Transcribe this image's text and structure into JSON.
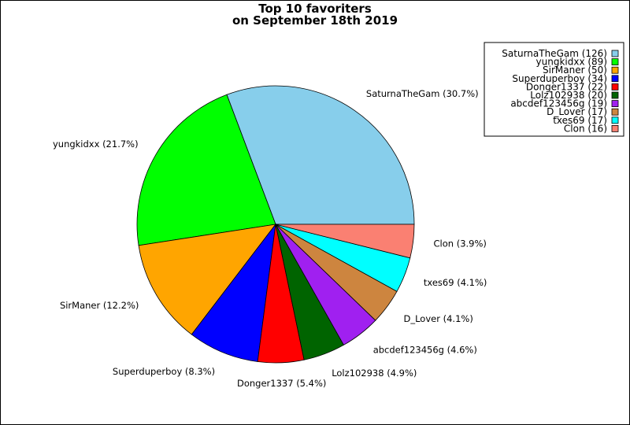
{
  "chart_data": {
    "type": "pie",
    "title": "Top 10 favoriters",
    "subtitle": "on September 18th 2019",
    "legend_position": "top-right",
    "start_angle_deg": 0,
    "direction": "counterclockwise",
    "slices": [
      {
        "name": "SaturnaTheGam",
        "value": 126,
        "percent_label": "SaturnaTheGam (30.7%)",
        "legend_label": "SaturnaTheGam (126)",
        "color": "#87CEEB"
      },
      {
        "name": "yungkidxx",
        "value": 89,
        "percent_label": "yungkidxx (21.7%)",
        "legend_label": "yungkidxx (89)",
        "color": "#00FF00"
      },
      {
        "name": "SirManer",
        "value": 50,
        "percent_label": "SirManer (12.2%)",
        "legend_label": "SirManer (50)",
        "color": "#FFA500"
      },
      {
        "name": "Superduperboy",
        "value": 34,
        "percent_label": "Superduperboy (8.3%)",
        "legend_label": "Superduperboy (34)",
        "color": "#0000FF"
      },
      {
        "name": "Donger1337",
        "value": 22,
        "percent_label": "Donger1337 (5.4%)",
        "legend_label": "Donger1337 (22)",
        "color": "#FF0000"
      },
      {
        "name": "Lolz102938",
        "value": 20,
        "percent_label": "Lolz102938 (4.9%)",
        "legend_label": "Lolz102938 (20)",
        "color": "#006400"
      },
      {
        "name": "abcdef123456g",
        "value": 19,
        "percent_label": "abcdef123456g (4.6%)",
        "legend_label": "abcdef123456g (19)",
        "color": "#A020F0"
      },
      {
        "name": "D_Lover",
        "value": 17,
        "percent_label": "D_Lover (4.1%)",
        "legend_label": "D_Lover (17)",
        "color": "#CD853F"
      },
      {
        "name": "txes69",
        "value": 17,
        "percent_label": "txes69 (4.1%)",
        "legend_label": "txes69 (17)",
        "color": "#00FFFF"
      },
      {
        "name": "Clon",
        "value": 16,
        "percent_label": "Clon (3.9%)",
        "legend_label": "Clon (16)",
        "color": "#FA8072"
      }
    ]
  }
}
